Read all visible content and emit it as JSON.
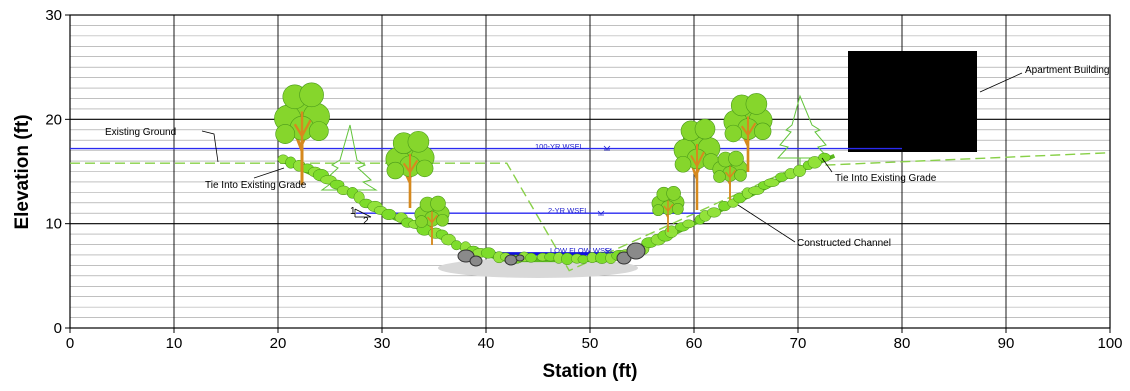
{
  "chart_data": {
    "type": "line",
    "xlabel": "Station (ft)",
    "ylabel": "Elevation (ft)",
    "xlim": [
      0,
      100
    ],
    "ylim": [
      0,
      30
    ],
    "x_ticks": [
      0,
      10,
      20,
      30,
      40,
      50,
      60,
      70,
      80,
      90,
      100
    ],
    "y_ticks": [
      0,
      10,
      20,
      30
    ],
    "grid": "horizontal every 1 ft; bold every 10 ft",
    "water_levels": [
      {
        "label": "100-YR WSEL",
        "elevation": 17.2,
        "x_start": 0,
        "x_end": 80
      },
      {
        "label": "2-YR WSEL",
        "elevation": 11.0,
        "x_start": 27.5,
        "x_end": 62
      },
      {
        "label": "LOW FLOW WSEL",
        "elevation": 7.1,
        "x_start": 37.5,
        "x_end": 55
      }
    ],
    "existing_ground": {
      "x": [
        0,
        42,
        48,
        70,
        100
      ],
      "y": [
        15.8,
        15.8,
        5.5,
        15.5,
        16.8
      ]
    },
    "constructed_channel": {
      "x": [
        20.5,
        25,
        30,
        35,
        38,
        42,
        47,
        52,
        55,
        58,
        62,
        66,
        70,
        73.5
      ],
      "y": [
        16,
        14,
        11,
        9,
        7.5,
        6.5,
        6.5,
        6.5,
        7.5,
        9,
        11,
        13,
        15,
        16.5
      ]
    },
    "slope_label": {
      "rise": "1",
      "run": "2"
    },
    "annotations": [
      {
        "text": "Existing Ground"
      },
      {
        "text": "Tie Into Existing Grade"
      },
      {
        "text": "Tie Into Existing Grade"
      },
      {
        "text": "Constructed Channel"
      },
      {
        "text": "Apartment Building"
      }
    ],
    "colors": {
      "water": "#2a2af0",
      "low_flow": "#1010e0",
      "channel": "#7ddc2a",
      "existing_ground": "#88d048",
      "building": "#000000",
      "tree_foliage": "#86d62c",
      "tree_trunk": "#d6891e",
      "rock": "#8a8a8a"
    }
  }
}
